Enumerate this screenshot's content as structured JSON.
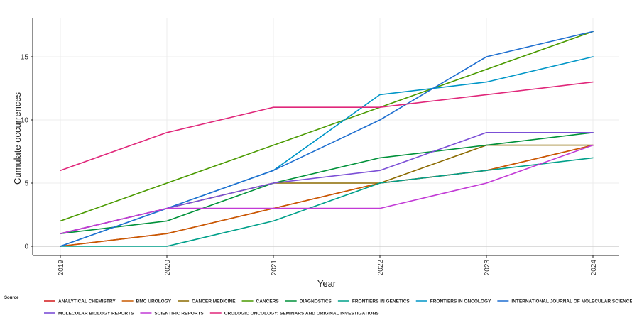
{
  "chart_data": {
    "type": "line",
    "title": "",
    "xlabel": "Year",
    "ylabel": "Cumulate occurrences",
    "x": [
      "2019",
      "2020",
      "2021",
      "2022",
      "2023",
      "2024"
    ],
    "ylim": [
      -0.8,
      18
    ],
    "yticks": [
      "0",
      "5",
      "10",
      "15"
    ],
    "grid": true,
    "legend_title": "Source",
    "legend_position": "bottom",
    "series": [
      {
        "name": "ANALYTICAL CHEMISTRY",
        "color": "#d62728",
        "values": [
          0,
          1,
          3,
          5,
          6,
          8
        ]
      },
      {
        "name": "BMC UROLOGY",
        "color": "#c85a00",
        "values": [
          0,
          1,
          3,
          5,
          6,
          8
        ]
      },
      {
        "name": "CANCER MEDICINE",
        "color": "#8b6a00",
        "values": [
          1,
          3,
          5,
          5,
          8,
          8
        ]
      },
      {
        "name": "CANCERS",
        "color": "#4a9a00",
        "values": [
          2,
          5,
          8,
          11,
          14,
          17
        ]
      },
      {
        "name": "DIAGNOSTICS",
        "color": "#00913a",
        "values": [
          1,
          2,
          5,
          7,
          8,
          9
        ]
      },
      {
        "name": "FRONTIERS IN GENETICS",
        "color": "#00a08a",
        "values": [
          0,
          0,
          2,
          5,
          6,
          7
        ]
      },
      {
        "name": "FRONTIERS IN ONCOLOGY",
        "color": "#0096c7",
        "values": [
          0,
          3,
          6,
          12,
          13,
          15
        ]
      },
      {
        "name": "INTERNATIONAL JOURNAL OF MOLECULAR SCIENCES",
        "color": "#1f6fd0",
        "values": [
          0,
          3,
          6,
          10,
          15,
          17
        ]
      },
      {
        "name": "MOLECULAR BIOLOGY REPORTS",
        "color": "#7b4fd6",
        "values": [
          1,
          3,
          5,
          6,
          9,
          9
        ]
      },
      {
        "name": "SCIENTIFIC REPORTS",
        "color": "#c23ad6",
        "values": [
          1,
          3,
          3,
          3,
          5,
          8
        ]
      },
      {
        "name": "UROLOGIC ONCOLOGY: SEMINARS AND ORIGINAL INVESTIGATIONS",
        "color": "#e0277a",
        "values": [
          6,
          9,
          11,
          11,
          12,
          13
        ]
      }
    ]
  }
}
